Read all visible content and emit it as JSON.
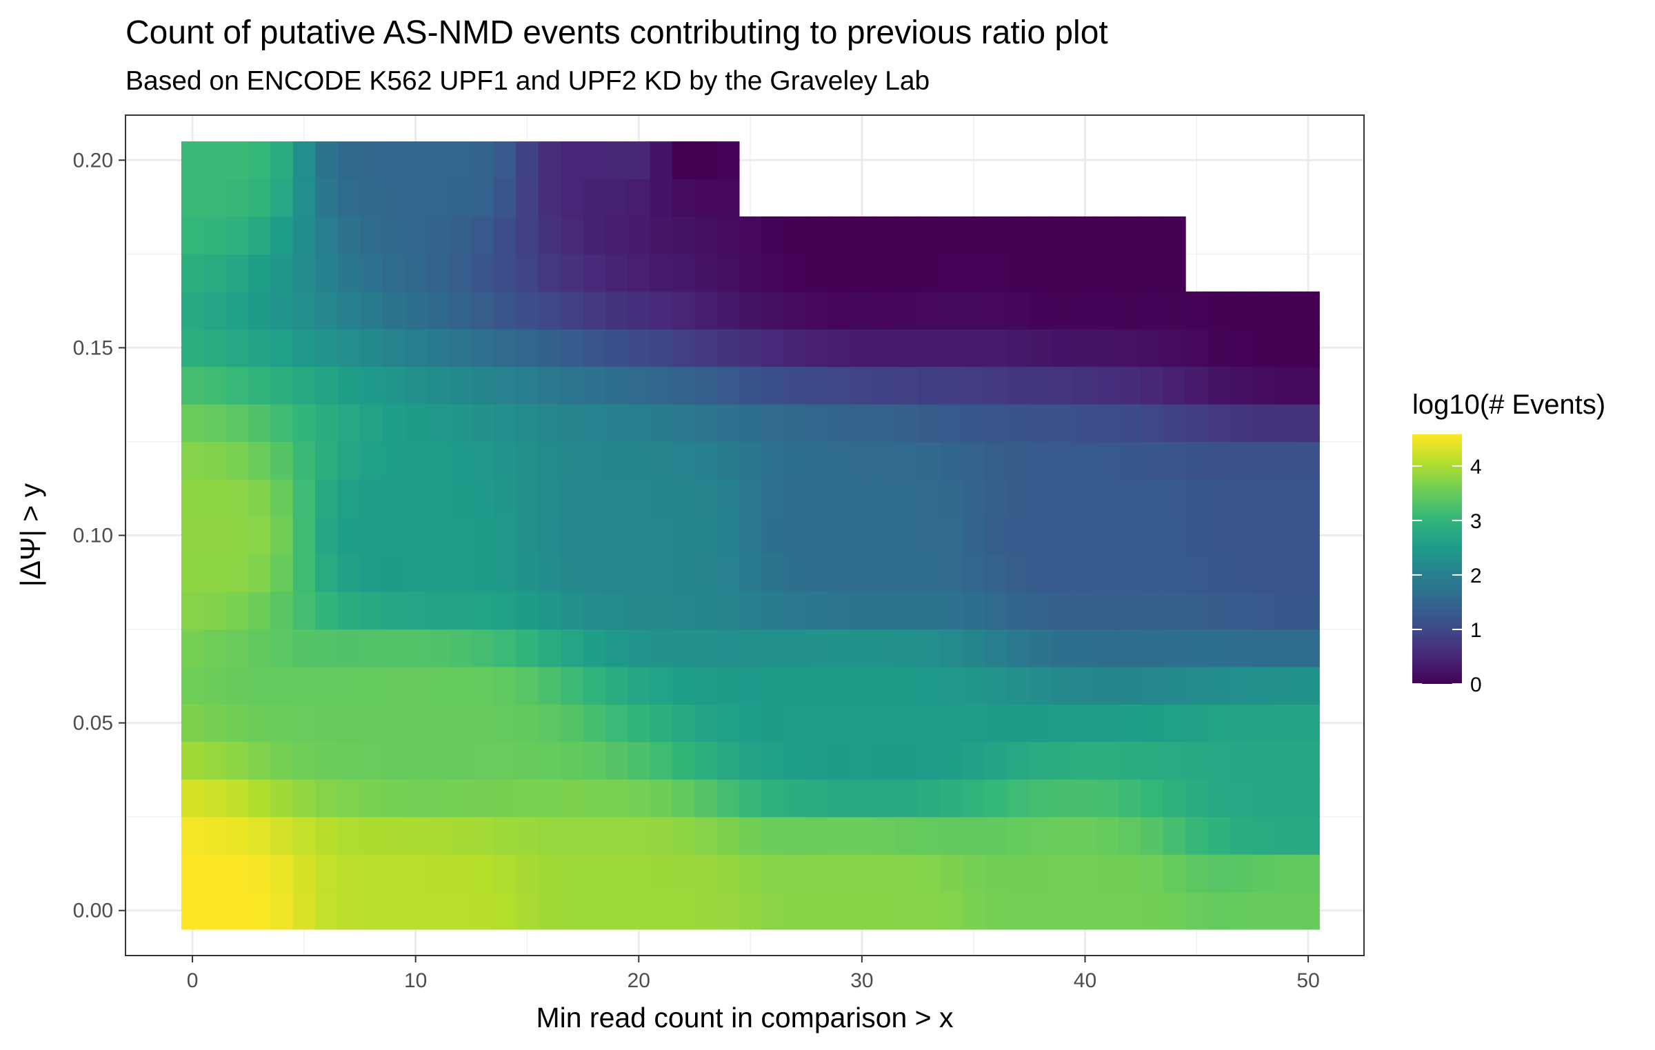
{
  "chart_data": {
    "type": "heatmap",
    "title": "Count of putative AS-NMD events contributing to previous ratio plot",
    "subtitle": "Based on ENCODE K562 UPF1 and UPF2 KD by the Graveley Lab",
    "xlabel": "Min read count in comparison > x",
    "ylabel": "|ΔΨ| > y",
    "x": {
      "start": 0,
      "end": 50,
      "step": 1,
      "ticks": [
        0,
        10,
        20,
        30,
        40,
        50
      ],
      "tick_labels": [
        "0",
        "10",
        "20",
        "30",
        "40",
        "50"
      ]
    },
    "y": {
      "start": 0,
      "end": 0.2,
      "step": 0.01,
      "ticks": [
        0,
        0.05,
        0.1,
        0.15,
        0.2
      ],
      "tick_labels": [
        "0.00",
        "0.05",
        "0.10",
        "0.15",
        "0.20"
      ]
    },
    "xlim": [
      -3,
      52.5
    ],
    "ylim": [
      -0.012,
      0.212
    ],
    "value_name": "log10(# Events)",
    "value_range": [
      0,
      4.58
    ],
    "max_y_by_x": [
      {
        "x_from": 0,
        "x_to": 24,
        "max_y": 0.2
      },
      {
        "x_from": 25,
        "x_to": 44,
        "max_y": 0.18
      },
      {
        "x_from": 45,
        "x_to": 50,
        "max_y": 0.16
      }
    ],
    "sample_values": [
      {
        "x": 0,
        "y": 0.0,
        "value": 4.58
      },
      {
        "x": 0,
        "y": 0.1,
        "value": 3.8
      },
      {
        "x": 0,
        "y": 0.2,
        "value": 3.1
      },
      {
        "x": 10,
        "y": 0.0,
        "value": 4.1
      },
      {
        "x": 10,
        "y": 0.05,
        "value": 3.5
      },
      {
        "x": 10,
        "y": 0.1,
        "value": 2.5
      },
      {
        "x": 10,
        "y": 0.2,
        "value": 1.5
      },
      {
        "x": 20,
        "y": 0.0,
        "value": 3.9
      },
      {
        "x": 20,
        "y": 0.1,
        "value": 2.1
      },
      {
        "x": 20,
        "y": 0.2,
        "value": 0.5
      },
      {
        "x": 22,
        "y": 0.2,
        "value": 0.0
      },
      {
        "x": 30,
        "y": 0.0,
        "value": 3.75
      },
      {
        "x": 30,
        "y": 0.05,
        "value": 2.5
      },
      {
        "x": 30,
        "y": 0.1,
        "value": 1.6
      },
      {
        "x": 30,
        "y": 0.18,
        "value": 0.0
      },
      {
        "x": 40,
        "y": 0.0,
        "value": 3.6
      },
      {
        "x": 40,
        "y": 0.1,
        "value": 1.3
      },
      {
        "x": 40,
        "y": 0.18,
        "value": 0.0
      },
      {
        "x": 50,
        "y": 0.0,
        "value": 3.5
      },
      {
        "x": 50,
        "y": 0.03,
        "value": 2.7
      },
      {
        "x": 50,
        "y": 0.1,
        "value": 1.2
      },
      {
        "x": 50,
        "y": 0.16,
        "value": 0.0
      }
    ],
    "colorscale": "viridis",
    "grid": true,
    "legend": {
      "title": "log10(# Events)",
      "position": "right",
      "ticks": [
        0,
        1,
        2,
        3,
        4
      ],
      "tick_labels": [
        "0",
        "1",
        "2",
        "3",
        "4"
      ]
    }
  }
}
